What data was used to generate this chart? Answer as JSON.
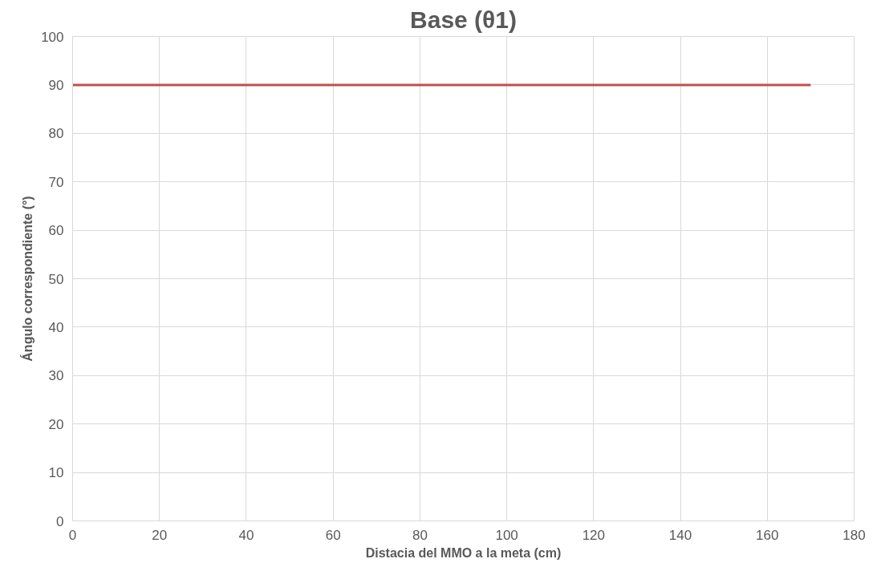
{
  "chart_data": {
    "type": "line",
    "title": "Base (θ1)",
    "xlabel": "Distacia del MMO a la meta (cm)",
    "ylabel": "Ángulo correspondiente (°)",
    "x": [
      0,
      170
    ],
    "series": [
      {
        "color": "#c0504d",
        "values": [
          90,
          90
        ]
      }
    ],
    "xlim": [
      0,
      180
    ],
    "xticks": [
      0,
      20,
      40,
      60,
      80,
      100,
      120,
      140,
      160,
      180
    ],
    "ylim": [
      0,
      100
    ],
    "yticks": [
      0,
      10,
      20,
      30,
      40,
      50,
      60,
      70,
      80,
      90,
      100
    ],
    "grid": true,
    "marker": "none",
    "line_style": "solid"
  }
}
